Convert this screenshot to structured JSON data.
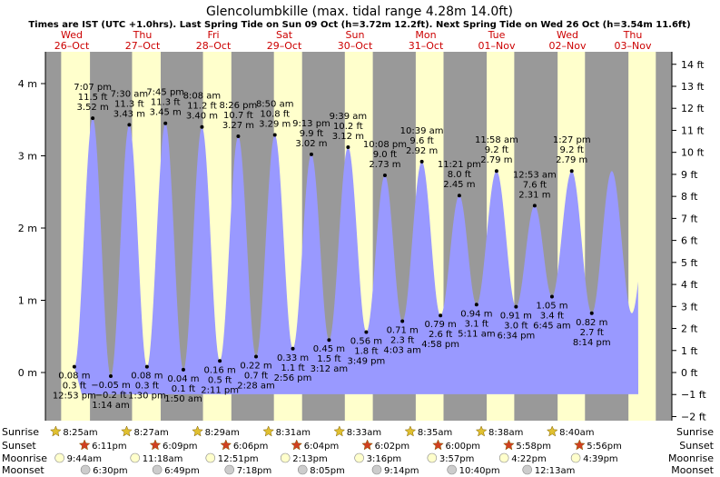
{
  "chart_data": {
    "type": "area",
    "title": "Glencolumbkille (max. tidal range 4.28m 14.0ft)",
    "subtitle": "Times are IST (UTC +1.0hrs). Last Spring Tide on Sun 09 Oct (h=3.72m 12.2ft). Next Spring Tide on Wed 26 Oct (h=3.54m 11.6ft)",
    "left_axis": {
      "unit": "m",
      "range": [
        -0.4,
        4.4
      ],
      "ticks": [
        {
          "v": 0,
          "label": "0 m"
        },
        {
          "v": 1,
          "label": "1 m"
        },
        {
          "v": 2,
          "label": "2 m"
        },
        {
          "v": 3,
          "label": "3 m"
        },
        {
          "v": 4,
          "label": "4 m"
        }
      ]
    },
    "right_axis": {
      "unit": "ft",
      "ticks": [
        {
          "v": -2,
          "label": "−2 ft"
        },
        {
          "v": -1,
          "label": "−1 ft"
        },
        {
          "v": 0,
          "label": "0 ft"
        },
        {
          "v": 1,
          "label": "1 ft"
        },
        {
          "v": 2,
          "label": "2 ft"
        },
        {
          "v": 3,
          "label": "3 ft"
        },
        {
          "v": 4,
          "label": "4 ft"
        },
        {
          "v": 5,
          "label": "5 ft"
        },
        {
          "v": 6,
          "label": "6 ft"
        },
        {
          "v": 7,
          "label": "7 ft"
        },
        {
          "v": 8,
          "label": "8 ft"
        },
        {
          "v": 9,
          "label": "9 ft"
        },
        {
          "v": 10,
          "label": "10 ft"
        },
        {
          "v": 11,
          "label": "11 ft"
        },
        {
          "v": 12,
          "label": "12 ft"
        },
        {
          "v": 13,
          "label": "13 ft"
        },
        {
          "v": 14,
          "label": "14 ft"
        }
      ]
    },
    "days": [
      {
        "dow": "Wed",
        "date": "26–Oct"
      },
      {
        "dow": "Thu",
        "date": "27–Oct"
      },
      {
        "dow": "Fri",
        "date": "28–Oct"
      },
      {
        "dow": "Sat",
        "date": "29–Oct"
      },
      {
        "dow": "Sun",
        "date": "30–Oct"
      },
      {
        "dow": "Mon",
        "date": "31–Oct"
      },
      {
        "dow": "Tue",
        "date": "01–Nov"
      },
      {
        "dow": "Wed",
        "date": "02–Nov"
      },
      {
        "dow": "Thu",
        "date": "03–Nov"
      }
    ],
    "tides": [
      {
        "type": "high",
        "time": "7:07 pm",
        "m": 3.52,
        "ft": "11.5 ft",
        "m_label": "3.52 m",
        "day": 0
      },
      {
        "type": "low",
        "time": "12:53 pm",
        "m": 0.08,
        "ft": "0.3 ft",
        "m_label": "0.08 m",
        "day": 0
      },
      {
        "type": "low",
        "time": "1:14 am",
        "m": -0.05,
        "ft": "−0.2 ft",
        "m_label": "−0.05 m",
        "day": 1
      },
      {
        "type": "high",
        "time": "7:30 am",
        "m": 3.43,
        "ft": "11.3 ft",
        "m_label": "3.43 m",
        "day": 1
      },
      {
        "type": "low",
        "time": "1:30 pm",
        "m": 0.08,
        "ft": "0.3 ft",
        "m_label": "0.08 m",
        "day": 1
      },
      {
        "type": "high",
        "time": "7:45 pm",
        "m": 3.45,
        "ft": "11.3 ft",
        "m_label": "3.45 m",
        "day": 1
      },
      {
        "type": "low",
        "time": "1:50 am",
        "m": 0.04,
        "ft": "0.1 ft",
        "m_label": "0.04 m",
        "day": 2
      },
      {
        "type": "high",
        "time": "8:08 am",
        "m": 3.4,
        "ft": "11.2 ft",
        "m_label": "3.40 m",
        "day": 2
      },
      {
        "type": "low",
        "time": "2:11 pm",
        "m": 0.16,
        "ft": "0.5 ft",
        "m_label": "0.16 m",
        "day": 2
      },
      {
        "type": "high",
        "time": "8:26 pm",
        "m": 3.27,
        "ft": "10.7 ft",
        "m_label": "3.27 m",
        "day": 2
      },
      {
        "type": "low",
        "time": "2:28 am",
        "m": 0.22,
        "ft": "0.7 ft",
        "m_label": "0.22 m",
        "day": 3
      },
      {
        "type": "high",
        "time": "8:50 am",
        "m": 3.29,
        "ft": "10.8 ft",
        "m_label": "3.29 m",
        "day": 3
      },
      {
        "type": "low",
        "time": "2:56 pm",
        "m": 0.33,
        "ft": "1.1 ft",
        "m_label": "0.33 m",
        "day": 3
      },
      {
        "type": "high",
        "time": "9:13 pm",
        "m": 3.02,
        "ft": "9.9 ft",
        "m_label": "3.02 m",
        "day": 3
      },
      {
        "type": "low",
        "time": "3:12 am",
        "m": 0.45,
        "ft": "1.5 ft",
        "m_label": "0.45 m",
        "day": 4
      },
      {
        "type": "high",
        "time": "9:39 am",
        "m": 3.12,
        "ft": "10.2 ft",
        "m_label": "3.12 m",
        "day": 4
      },
      {
        "type": "low",
        "time": "3:49 pm",
        "m": 0.56,
        "ft": "1.8 ft",
        "m_label": "0.56 m",
        "day": 4
      },
      {
        "type": "high",
        "time": "10:08 pm",
        "m": 2.73,
        "ft": "9.0 ft",
        "m_label": "2.73 m",
        "day": 4
      },
      {
        "type": "low",
        "time": "4:03 am",
        "m": 0.71,
        "ft": "2.3 ft",
        "m_label": "0.71 m",
        "day": 5
      },
      {
        "type": "high",
        "time": "10:39 am",
        "m": 2.92,
        "ft": "9.6 ft",
        "m_label": "2.92 m",
        "day": 5
      },
      {
        "type": "low",
        "time": "4:58 pm",
        "m": 0.79,
        "ft": "2.6 ft",
        "m_label": "0.79 m",
        "day": 5
      },
      {
        "type": "high",
        "time": "11:21 pm",
        "m": 2.45,
        "ft": "8.0 ft",
        "m_label": "2.45 m",
        "day": 5
      },
      {
        "type": "low",
        "time": "5:11 am",
        "m": 0.94,
        "ft": "3.1 ft",
        "m_label": "0.94 m",
        "day": 6
      },
      {
        "type": "high",
        "time": "11:58 am",
        "m": 2.79,
        "ft": "9.2 ft",
        "m_label": "2.79 m",
        "day": 6
      },
      {
        "type": "low",
        "time": "6:34 pm",
        "m": 0.91,
        "ft": "3.0 ft",
        "m_label": "0.91 m",
        "day": 6
      },
      {
        "type": "high",
        "time": "12:53 am",
        "m": 2.31,
        "ft": "7.6 ft",
        "m_label": "2.31 m",
        "day": 7
      },
      {
        "type": "low",
        "time": "6:45 am",
        "m": 1.05,
        "ft": "3.4 ft",
        "m_label": "1.05 m",
        "day": 7
      },
      {
        "type": "high",
        "time": "1:27 pm",
        "m": 2.79,
        "ft": "9.2 ft",
        "m_label": "2.79 m",
        "day": 7
      },
      {
        "type": "low",
        "time": "8:14 pm",
        "m": 0.82,
        "ft": "2.7 ft",
        "m_label": "0.82 m",
        "day": 7
      }
    ],
    "sunrise": [
      "8:25am",
      "8:27am",
      "8:29am",
      "8:31am",
      "8:33am",
      "8:35am",
      "8:38am",
      "8:40am"
    ],
    "sunset": [
      "6:11pm",
      "6:09pm",
      "6:06pm",
      "6:04pm",
      "6:02pm",
      "6:00pm",
      "5:58pm",
      "5:56pm"
    ],
    "moonrise": [
      "9:44am",
      "11:18am",
      "12:51pm",
      "2:13pm",
      "3:16pm",
      "3:57pm",
      "4:22pm",
      "4:39pm"
    ],
    "moonset": [
      "6:30pm",
      "6:49pm",
      "7:18pm",
      "8:05pm",
      "9:14pm",
      "10:40pm",
      "12:13am",
      ""
    ],
    "row_labels": {
      "sunrise": "Sunrise",
      "sunset": "Sunset",
      "moonrise": "Moonrise",
      "moonset": "Moonset"
    },
    "colors": {
      "night": "#999999",
      "day": "#ffffcc",
      "water": "#9999ff",
      "sun": "#e0c030",
      "sunset": "#d04020",
      "moon": "#ffffcc",
      "moonset": "#cccccc",
      "day_text": "#cc0000"
    }
  }
}
